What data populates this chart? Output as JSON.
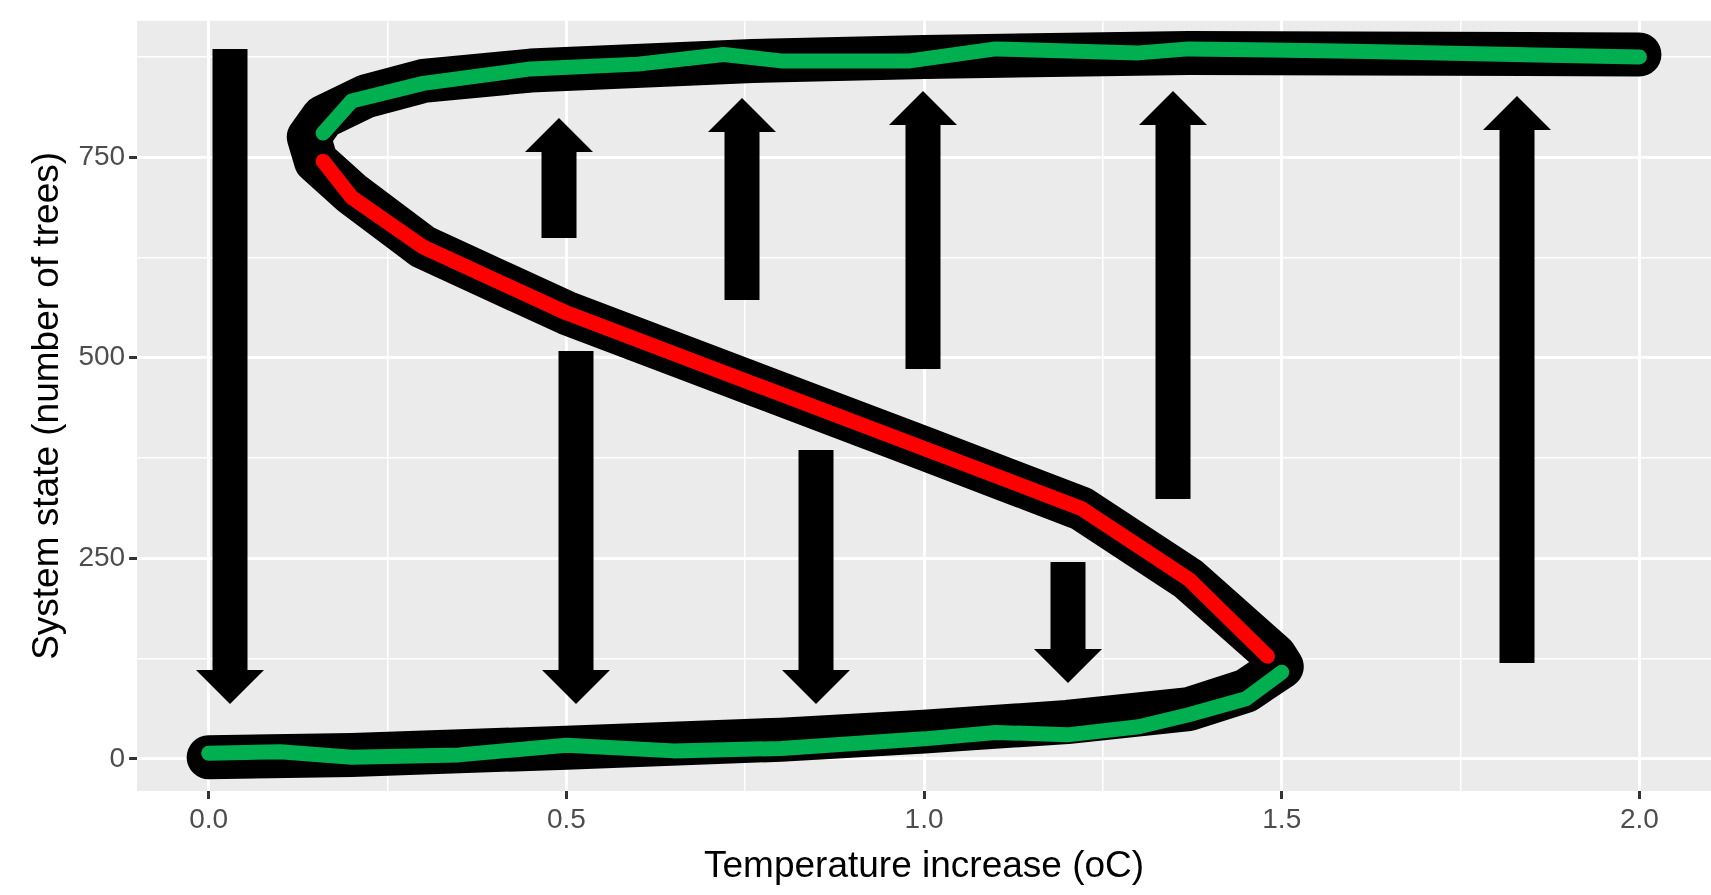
{
  "chart_data": {
    "type": "line",
    "xlabel": "Temperature increase (oC)",
    "ylabel": "System state (number of trees)",
    "xlim": [
      -0.1,
      2.1
    ],
    "ylim": [
      -40,
      920
    ],
    "xticks": [
      {
        "value": 0,
        "label": "0.0"
      },
      {
        "value": 0.25,
        "label": null
      },
      {
        "value": 0.5,
        "label": "0.5"
      },
      {
        "value": 0.75,
        "label": null
      },
      {
        "value": 1,
        "label": "1.0"
      },
      {
        "value": 1.25,
        "label": null
      },
      {
        "value": 1.5,
        "label": "1.5"
      },
      {
        "value": 1.75,
        "label": null
      },
      {
        "value": 2,
        "label": "2.0"
      }
    ],
    "yticks": [
      0,
      {
        "value": 125,
        "label": null
      },
      250,
      {
        "value": 375,
        "label": null
      },
      500,
      {
        "value": 625,
        "label": null
      },
      750,
      {
        "value": 875,
        "label": null
      }
    ],
    "grid": true,
    "legend": false,
    "marker": "none",
    "line_style": "solid",
    "series": [
      {
        "color": "#000000",
        "x": [
          0,
          0.2,
          0.5,
          0.8,
          1.0,
          1.2,
          1.37,
          1.45,
          1.5,
          1.49,
          1.37,
          1.22,
          1.0,
          0.76,
          0.5,
          0.3,
          0.2,
          0.15,
          0.14,
          0.16,
          0.22,
          0.3,
          0.45,
          0.76,
          1.0,
          1.37,
          2.0
        ],
        "values": [
          2,
          5,
          14,
          24,
          34,
          46,
          62,
          85,
          115,
          129,
          224,
          312,
          387,
          468,
          556,
          638,
          705,
          745,
          775,
          800,
          826,
          845,
          858,
          870,
          875,
          880,
          878
        ]
      },
      {
        "color": "#00b050",
        "x": [
          0,
          0.1,
          0.2,
          0.35,
          0.5,
          0.65,
          0.8,
          1.0,
          1.1,
          1.2,
          1.3,
          1.37,
          1.45,
          1.5
        ],
        "values": [
          7,
          9,
          2,
          5,
          17,
          10,
          13,
          25,
          33,
          30,
          40,
          55,
          75,
          108
        ]
      },
      {
        "color": "#ff0000",
        "x": [
          1.48,
          1.37,
          1.22,
          1.0,
          0.76,
          0.5,
          0.3,
          0.2,
          0.16
        ],
        "values": [
          128,
          224,
          312,
          387,
          468,
          556,
          638,
          700,
          745
        ]
      },
      {
        "color": "#00b050",
        "x": [
          0.16,
          0.2,
          0.3,
          0.45,
          0.6,
          0.72,
          0.8,
          0.98,
          1.1,
          1.3,
          1.37,
          1.6,
          2.0
        ],
        "values": [
          780,
          820,
          842,
          860,
          866,
          878,
          870,
          870,
          885,
          880,
          885,
          882,
          875
        ]
      }
    ]
  }
}
